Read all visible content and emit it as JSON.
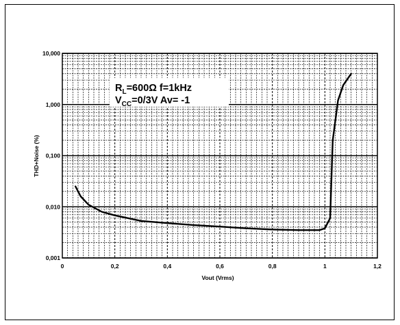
{
  "chart_data": {
    "type": "line",
    "title": "",
    "xlabel": "Vout (Vrms)",
    "ylabel": "THD+Noise (%)",
    "xlim": [
      0,
      1.2
    ],
    "ylim": [
      0.001,
      10
    ],
    "yscale": "log",
    "grid": true,
    "xticks": [
      {
        "value": 0,
        "label": "0"
      },
      {
        "value": 0.2,
        "label": "0,2"
      },
      {
        "value": 0.4,
        "label": "0,4"
      },
      {
        "value": 0.6,
        "label": "0,6"
      },
      {
        "value": 0.8,
        "label": "0,8"
      },
      {
        "value": 1.0,
        "label": "1"
      },
      {
        "value": 1.2,
        "label": "1,2"
      }
    ],
    "yticks": [
      {
        "value": 0.001,
        "label": "0,001"
      },
      {
        "value": 0.01,
        "label": "0,010"
      },
      {
        "value": 0.1,
        "label": "0,100"
      },
      {
        "value": 1,
        "label": "1,000"
      },
      {
        "value": 10,
        "label": "10,000"
      }
    ],
    "annotations": {
      "line1_main": "R",
      "line1_sub": "L",
      "line1_rest": "=600Ω  f=1kHz",
      "line2_main": "V",
      "line2_sub": "CC",
      "line2_rest": "=0/3V  Av= -1"
    },
    "series": [
      {
        "x": [
          0.05,
          0.07,
          0.1,
          0.15,
          0.2,
          0.25,
          0.3,
          0.4,
          0.5,
          0.6,
          0.7,
          0.8,
          0.9,
          0.98,
          1.0,
          1.02,
          1.03,
          1.05,
          1.07,
          1.1
        ],
        "y": [
          0.025,
          0.016,
          0.011,
          0.008,
          0.0068,
          0.006,
          0.0053,
          0.0048,
          0.0044,
          0.0041,
          0.0038,
          0.0036,
          0.0035,
          0.0035,
          0.0038,
          0.006,
          0.2,
          1.2,
          2.4,
          4.0
        ]
      }
    ]
  }
}
